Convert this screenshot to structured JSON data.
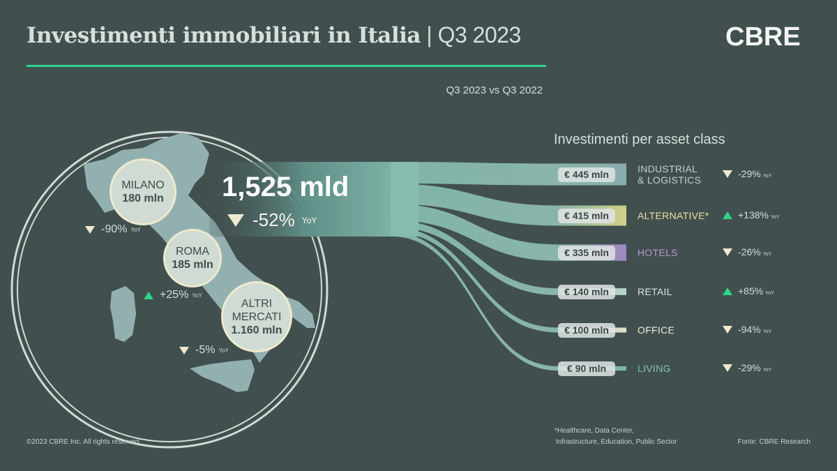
{
  "header": {
    "title": "Investimenti immobiliari in Italia",
    "title_sep": " | ",
    "period": "Q3 2023",
    "logo": "CBRE",
    "comparison": "Q3 2023 vs Q3 2022"
  },
  "total": {
    "value": "1,525 mld",
    "change": "-52%",
    "yoy": "YoY",
    "direction": "down"
  },
  "cities": [
    {
      "name": "MILANO",
      "value": "180 mln",
      "change": "-90%",
      "yoy": "YoY",
      "direction": "down"
    },
    {
      "name": "ROMA",
      "value": "185 mln",
      "change": "+25%",
      "yoy": "YoY",
      "direction": "up"
    },
    {
      "name_line1": "ALTRI",
      "name_line2": "MERCATI",
      "value": "1.160 mln",
      "change": "-5%",
      "yoy": "YoY",
      "direction": "down"
    }
  ],
  "asset_title": "Investimenti per asset class",
  "colors": {
    "background": "#414f4f",
    "accent": "#2fd38a",
    "down": "#efe9cf",
    "up": "#2fd38a"
  },
  "chart_data": {
    "type": "sankey",
    "title": "Investimenti per asset class",
    "source": "1,525 mld",
    "categories": [
      "INDUSTRIAL & LOGISTICS",
      "ALTERNATIVE*",
      "HOTELS",
      "RETAIL",
      "OFFICE",
      "LIVING"
    ],
    "values": [
      445,
      415,
      335,
      140,
      100,
      90
    ],
    "unit": "mln EUR",
    "items": [
      {
        "label_line1": "INDUSTRIAL",
        "label_line2": "& LOGISTICS",
        "amount": "€ 445 mln",
        "value": 445,
        "change": "-29%",
        "direction": "down",
        "color": "#8fb4b4",
        "label_color": "#c4d0cd"
      },
      {
        "label_line1": "ALTERNATIVE*",
        "amount": "€ 415 mln",
        "value": 415,
        "change": "+138%",
        "direction": "up",
        "color": "#dcdc8c",
        "label_color": "#e6e3a2"
      },
      {
        "label_line1": "HOTELS",
        "amount": "€ 335 mln",
        "value": 335,
        "change": "-26%",
        "direction": "down",
        "color": "#a88cc8",
        "label_color": "#b79ad6"
      },
      {
        "label_line1": "RETAIL",
        "amount": "€ 140 mln",
        "value": 140,
        "change": "+85%",
        "direction": "up",
        "color": "#c2e0d4",
        "label_color": "#dfe6e2"
      },
      {
        "label_line1": "OFFICE",
        "amount": "€ 100 mln",
        "value": 100,
        "change": "-94%",
        "direction": "down",
        "color": "#f0efd4",
        "label_color": "#efeede"
      },
      {
        "label_line1": "LIVING",
        "amount": "€ 90 mln",
        "value": 90,
        "change": "-29%",
        "direction": "down",
        "color": "#7cc0ad",
        "label_color": "#86c4b4"
      }
    ],
    "yoy": "YoY"
  },
  "footer": {
    "copyright": "©2023 CBRE Inc. All rights reserved",
    "note_line1": "*Healthcare, Data Center,",
    "note_line2": "Infrastructure, Education, Public Sector",
    "source": "Fonte: CBRE Research"
  }
}
